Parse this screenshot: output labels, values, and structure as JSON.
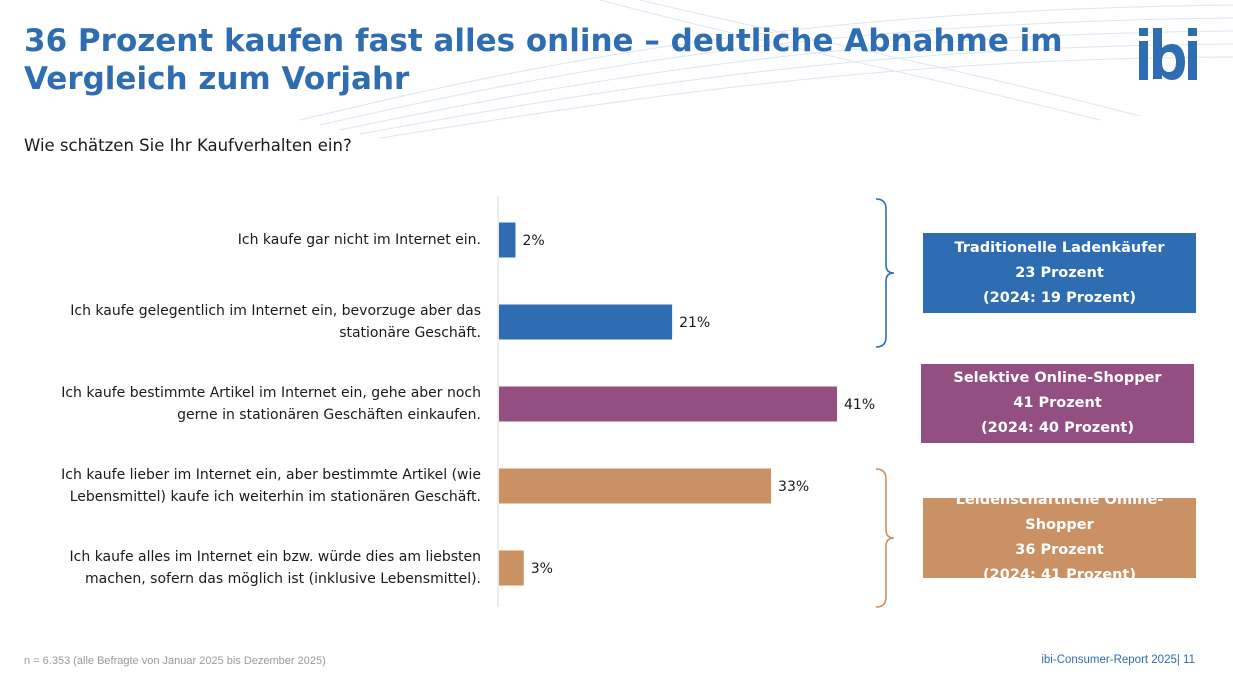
{
  "title": "36 Prozent kaufen fast alles online – deutliche Abnahme im Vergleich zum Vorjahr",
  "subtitle": "Wie schätzen Sie Ihr Kaufverhalten ein?",
  "logo_text": "ibi",
  "footnote": "n = 6.353 (alle Befragte von Januar 2025 bis Dezember 2025)",
  "footer": "ibi-Consumer-Report 2025| 11",
  "colors": {
    "title": "#2e6db2",
    "blue": "#2e6db2",
    "purple": "#944f82",
    "orange": "#ca9165",
    "axis": "#d9d9d9"
  },
  "chart_data": {
    "type": "bar",
    "orientation": "horizontal",
    "categories": [
      "Ich kaufe gar nicht im Internet ein.",
      "Ich kaufe gelegentlich im Internet ein, bevorzuge aber das stationäre Geschäft.",
      "Ich kaufe bestimmte Artikel im Internet ein, gehe aber noch gerne in stationären Geschäften einkaufen.",
      "Ich kaufe lieber im Internet ein, aber bestimmte Artikel (wie Lebensmittel) kaufe ich weiterhin im stationären Geschäft.",
      "Ich kaufe alles im Internet ein bzw. würde dies am liebsten machen, sofern das möglich ist (inklusive Lebensmittel)."
    ],
    "category_lines": [
      [
        "Ich kaufe gar nicht im Internet ein."
      ],
      [
        "Ich kaufe gelegentlich im Internet ein, bevorzuge aber das",
        "stationäre Geschäft."
      ],
      [
        "Ich kaufe bestimmte Artikel im Internet ein, gehe aber noch",
        "gerne in stationären Geschäften einkaufen."
      ],
      [
        "Ich kaufe lieber im Internet ein, aber bestimmte Artikel (wie",
        "Lebensmittel) kaufe ich weiterhin im stationären Geschäft."
      ],
      [
        "Ich kaufe alles im Internet ein bzw. würde dies am liebsten",
        "machen, sofern das möglich ist (inklusive Lebensmittel)."
      ]
    ],
    "values": [
      2,
      21,
      41,
      33,
      3
    ],
    "value_labels": [
      "2%",
      "21%",
      "41%",
      "33%",
      "3%"
    ],
    "bar_colors": [
      "#2e6db2",
      "#2e6db2",
      "#944f82",
      "#ca9165",
      "#ca9165"
    ],
    "xlim": [
      0,
      45
    ],
    "unit": "%"
  },
  "segments": [
    {
      "name": "Traditionelle Ladenkäufer",
      "share": "23 Prozent",
      "previous": "(2024: 19 Prozent)",
      "color": "#2e6db2",
      "bars": [
        0,
        1
      ]
    },
    {
      "name": "Selektive Online-Shopper",
      "share": "41 Prozent",
      "previous": "(2024: 40 Prozent)",
      "color": "#944f82",
      "bars": [
        2
      ]
    },
    {
      "name": "Leidenschaftliche Online-Shopper",
      "share": "36 Prozent",
      "previous": "(2024: 41 Prozent)",
      "color": "#ca9165",
      "bars": [
        3,
        4
      ]
    }
  ]
}
